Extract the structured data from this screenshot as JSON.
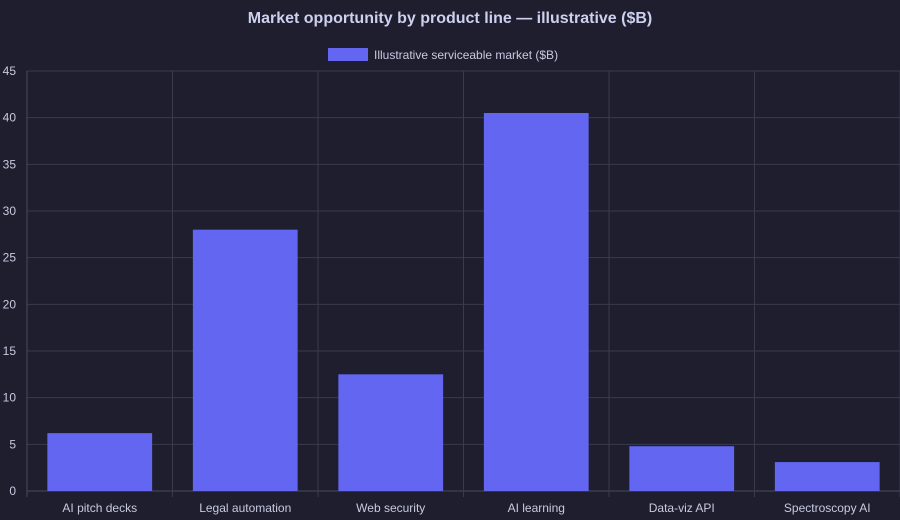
{
  "chart_data": {
    "type": "bar",
    "title": "Market opportunity by product line — illustrative ($B)",
    "categories": [
      "AI pitch decks",
      "Legal automation",
      "Web security",
      "AI learning",
      "Data-viz API",
      "Spectroscopy AI"
    ],
    "series": [
      {
        "name": "Illustrative serviceable market ($B)",
        "values": [
          6.2,
          28,
          12.5,
          40.5,
          4.8,
          3.1
        ]
      }
    ],
    "xlabel": "",
    "ylabel": "",
    "ylim": [
      0,
      45
    ],
    "yticks": [
      0,
      5,
      10,
      15,
      20,
      25,
      30,
      35,
      40,
      45
    ],
    "grid": true,
    "legend_position": "top-center",
    "colors": {
      "background": "#1e1e2e",
      "bar": "#6366f1",
      "grid": "#3a3a4e",
      "text": "#c8cae0"
    }
  }
}
